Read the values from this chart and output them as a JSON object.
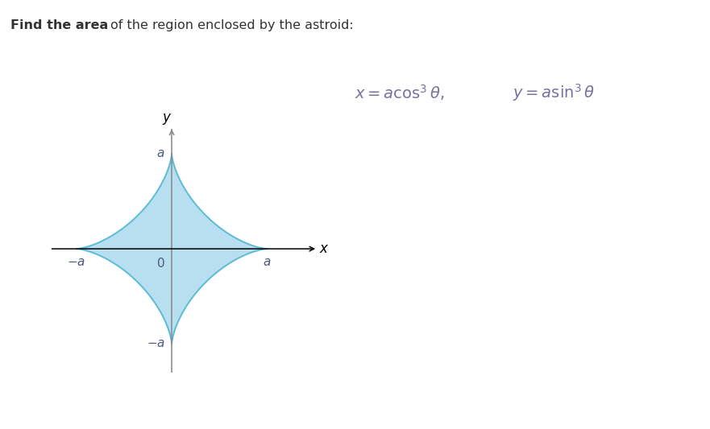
{
  "title_bold": "Find the area",
  "title_rest": " of the region enclosed by the astroid:",
  "fill_color": "#b8dff0",
  "line_color": "#5bbcd4",
  "line_width": 1.4,
  "axis_color": "#888888",
  "label_color": "#4a6fa5",
  "fig_width": 8.81,
  "fig_height": 5.33,
  "a": 1.0,
  "equation_color": "#7b6fa0",
  "tick_label_color": "#4a5a7a"
}
